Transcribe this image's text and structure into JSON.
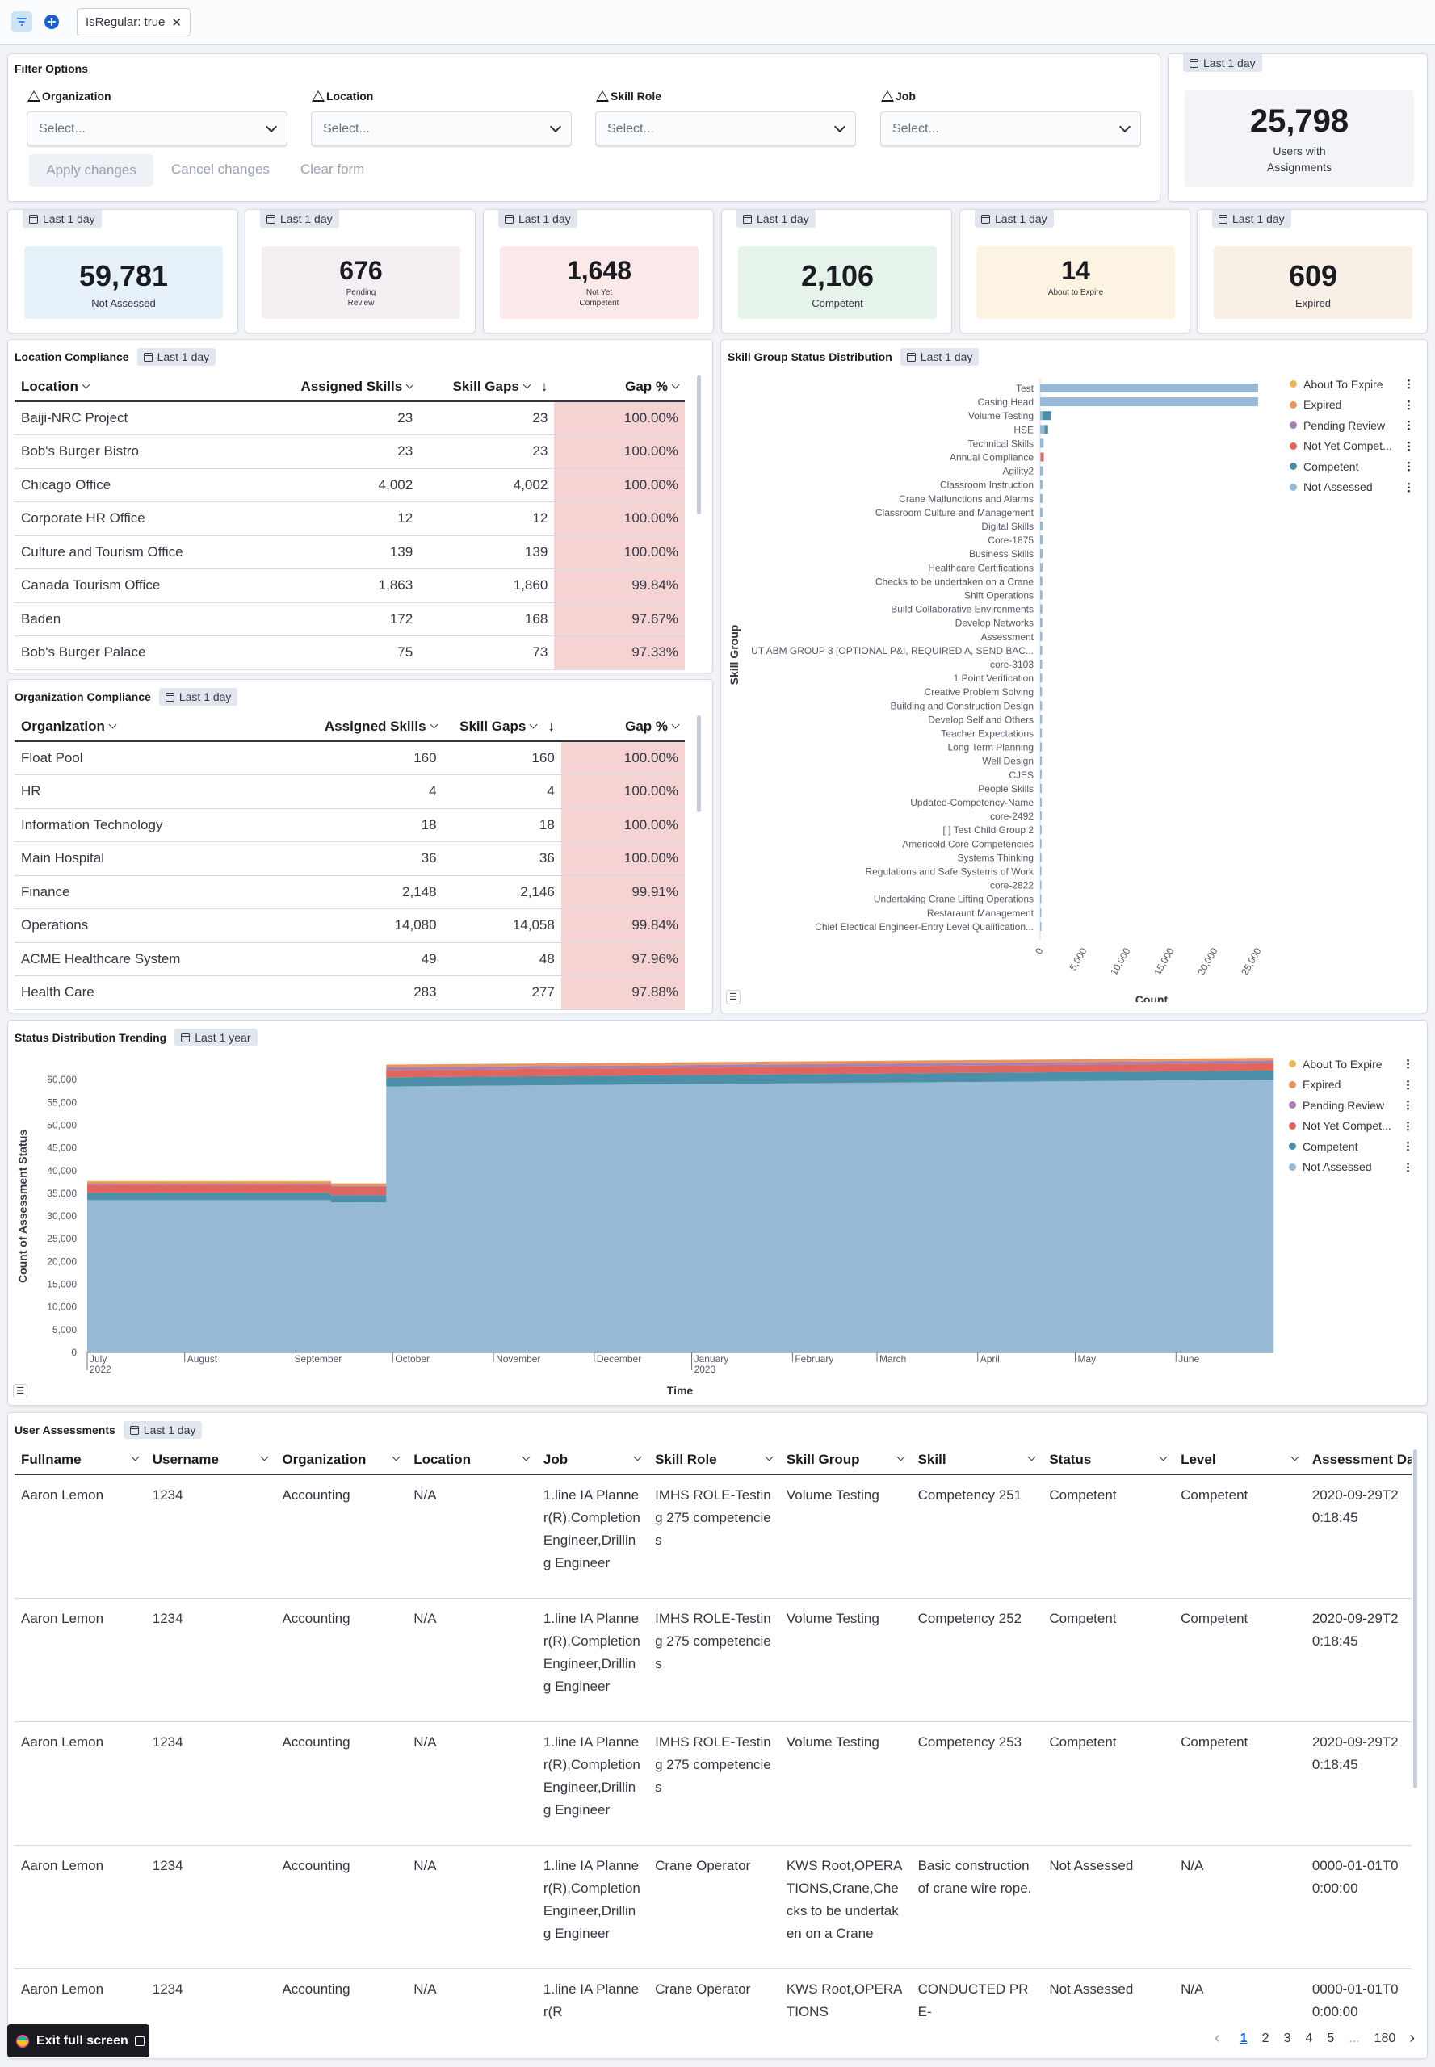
{
  "topbar": {
    "filter_pill": "IsRegular: true"
  },
  "filter_panel": {
    "title": "Filter Options",
    "fields": [
      {
        "label": "Organization",
        "placeholder": "Select..."
      },
      {
        "label": "Location",
        "placeholder": "Select..."
      },
      {
        "label": "Skill Role",
        "placeholder": "Select..."
      },
      {
        "label": "Job",
        "placeholder": "Select..."
      }
    ],
    "apply": "Apply changes",
    "cancel": "Cancel changes",
    "clear": "Clear form"
  },
  "time_badge_day": "Last 1 day",
  "time_badge_year": "Last 1 year",
  "kpis": {
    "users": {
      "value": "25,798",
      "label": "Users with Assignments"
    },
    "items": [
      {
        "value": "59,781",
        "label": "Not Assessed",
        "bg": "#e6f1fa"
      },
      {
        "value": "676",
        "label": "Pending Review",
        "bg": "#f5eef3"
      },
      {
        "value": "1,648",
        "label": "Not Yet Competent",
        "bg": "#fbe8e8"
      },
      {
        "value": "2,106",
        "label": "Competent",
        "bg": "#e6f3ea"
      },
      {
        "value": "14",
        "label": "About to Expire",
        "bg": "#fdf3e2"
      },
      {
        "value": "609",
        "label": "Expired",
        "bg": "#f8f0e6"
      }
    ]
  },
  "location_compliance": {
    "title": "Location Compliance",
    "headers": [
      "Location",
      "Assigned Skills",
      "Skill Gaps",
      "Gap %"
    ],
    "rows": [
      [
        "Baiji-NRC Project",
        "23",
        "23",
        "100.00%"
      ],
      [
        "Bob's Burger Bistro",
        "23",
        "23",
        "100.00%"
      ],
      [
        "Chicago Office",
        "4,002",
        "4,002",
        "100.00%"
      ],
      [
        "Corporate HR Office",
        "12",
        "12",
        "100.00%"
      ],
      [
        "Culture and Tourism Office",
        "139",
        "139",
        "100.00%"
      ],
      [
        "Canada Tourism Office",
        "1,863",
        "1,860",
        "99.84%"
      ],
      [
        "Baden",
        "172",
        "168",
        "97.67%"
      ],
      [
        "Bob's Burger Palace",
        "75",
        "73",
        "97.33%"
      ]
    ]
  },
  "organization_compliance": {
    "title": "Organization Compliance",
    "headers": [
      "Organization",
      "Assigned Skills",
      "Skill Gaps",
      "Gap %"
    ],
    "rows": [
      [
        "Float Pool",
        "160",
        "160",
        "100.00%"
      ],
      [
        "HR",
        "4",
        "4",
        "100.00%"
      ],
      [
        "Information Technology",
        "18",
        "18",
        "100.00%"
      ],
      [
        "Main Hospital",
        "36",
        "36",
        "100.00%"
      ],
      [
        "Finance",
        "2,148",
        "2,146",
        "99.91%"
      ],
      [
        "Operations",
        "14,080",
        "14,058",
        "99.84%"
      ],
      [
        "ACME Healthcare System",
        "49",
        "48",
        "97.96%"
      ],
      [
        "Health Care",
        "283",
        "277",
        "97.88%"
      ]
    ]
  },
  "chart_data": [
    {
      "type": "bar",
      "orientation": "horizontal",
      "stacked": true,
      "title": "Skill Group Status Distribution",
      "xlabel": "Count",
      "ylabel": "Skill Group",
      "xlim": [
        0,
        25000
      ],
      "xticks": [
        "0",
        "5,000",
        "10,000",
        "15,000",
        "20,000",
        "25,000"
      ],
      "categories": [
        "Test",
        "Casing Head",
        "Volume Testing",
        "HSE",
        "Technical Skills",
        "Annual Compliance",
        "Agility2",
        "Classroom Instruction",
        "Crane Malfunctions and Alarms",
        "Classroom Culture and Management",
        "Digital Skills",
        "Core-1875",
        "Business Skills",
        "Healthcare Certifications",
        "Checks to be undertaken on a Crane",
        "Shift Operations",
        "Build Collaborative Environments",
        "Develop Networks",
        "Assessment",
        "UT ABM GROUP 3 [OPTIONAL P&I, REQUIRED A, SEND BAC...",
        "core-3103",
        "1 Point Verification",
        "Creative Problem Solving",
        "Building and Construction Design",
        "Develop Self and Others",
        "Teacher Expectations",
        "Long Term Planning",
        "Well Design",
        "CJES",
        "People Skills",
        "Updated-Competency-Name",
        "core-2492",
        "[ ] Test Child Group 2",
        "Americold Core Competencies",
        "Systems Thinking",
        "Regulations and Safe Systems of Work",
        "core-2822",
        "Undertaking Crane Lifting Operations",
        "Restaraunt Management",
        "Chief Electical Engineer-Entry Level Qualification..."
      ],
      "series": [
        {
          "name": "About To Expire",
          "color": "#e7b85a",
          "values": [
            0,
            0,
            0,
            0,
            0,
            0,
            0,
            0,
            0,
            0,
            0,
            0,
            0,
            0,
            0,
            0,
            0,
            0,
            0,
            0,
            0,
            0,
            0,
            0,
            0,
            0,
            0,
            0,
            0,
            0,
            0,
            0,
            0,
            0,
            0,
            0,
            0,
            0,
            0,
            0
          ]
        },
        {
          "name": "Expired",
          "color": "#e8955e",
          "values": [
            0,
            0,
            0,
            30,
            0,
            60,
            0,
            0,
            0,
            0,
            0,
            0,
            0,
            0,
            0,
            0,
            0,
            0,
            0,
            0,
            0,
            0,
            0,
            0,
            0,
            0,
            0,
            0,
            0,
            0,
            0,
            0,
            0,
            0,
            0,
            0,
            0,
            0,
            0,
            0
          ]
        },
        {
          "name": "Pending Review",
          "color": "#a87eb5",
          "values": [
            0,
            0,
            0,
            0,
            0,
            0,
            0,
            0,
            0,
            0,
            0,
            0,
            0,
            0,
            0,
            0,
            0,
            0,
            0,
            0,
            0,
            0,
            0,
            0,
            0,
            0,
            0,
            0,
            0,
            0,
            0,
            0,
            0,
            0,
            0,
            0,
            0,
            0,
            0,
            0
          ]
        },
        {
          "name": "Not Yet Compet...",
          "color": "#e0655e",
          "values": [
            0,
            0,
            0,
            0,
            0,
            280,
            0,
            0,
            0,
            0,
            0,
            0,
            0,
            0,
            0,
            0,
            0,
            0,
            0,
            0,
            0,
            0,
            0,
            0,
            0,
            0,
            0,
            0,
            0,
            0,
            0,
            0,
            0,
            0,
            0,
            0,
            0,
            0,
            0,
            0
          ]
        },
        {
          "name": "Competent",
          "color": "#4c8fa8",
          "values": [
            0,
            0,
            1000,
            400,
            0,
            0,
            0,
            0,
            0,
            0,
            0,
            0,
            0,
            0,
            0,
            0,
            0,
            0,
            0,
            0,
            0,
            0,
            0,
            0,
            0,
            0,
            0,
            0,
            0,
            0,
            0,
            0,
            0,
            0,
            0,
            0,
            0,
            0,
            0,
            0
          ]
        },
        {
          "name": "Not Assessed",
          "color": "#96b9d6",
          "values": [
            25000,
            25000,
            300,
            500,
            400,
            100,
            350,
            300,
            300,
            300,
            300,
            300,
            280,
            280,
            260,
            260,
            260,
            260,
            240,
            240,
            230,
            230,
            220,
            220,
            220,
            200,
            200,
            200,
            180,
            180,
            180,
            170,
            170,
            160,
            160,
            150,
            150,
            140,
            140,
            140
          ]
        }
      ]
    },
    {
      "type": "bar",
      "stacked": true,
      "title": "Status Distribution Trending",
      "xlabel": "Time",
      "ylabel": "Count of Assessment Status",
      "ylim": [
        0,
        65000
      ],
      "yticks": [
        "0",
        "5,000",
        "10,000",
        "15,000",
        "20,000",
        "25,000",
        "30,000",
        "35,000",
        "40,000",
        "45,000",
        "50,000",
        "55,000",
        "60,000"
      ],
      "xticks": [
        "July 2022",
        "August",
        "September",
        "October",
        "November",
        "December",
        "January 2023",
        "February",
        "March",
        "April",
        "May",
        "June"
      ],
      "periods": [
        {
          "from": "July 2022",
          "to": "mid September",
          "not_assessed": 33500,
          "competent": 1600,
          "not_yet_competent": 1800,
          "pending_review": 200,
          "expired": 500,
          "about_to_expire": 100
        },
        {
          "from": "mid September",
          "to": "October",
          "not_assessed": 33000,
          "competent": 1600,
          "not_yet_competent": 1800,
          "pending_review": 200,
          "expired": 500,
          "about_to_expire": 100
        },
        {
          "from": "October",
          "to": "June",
          "not_assessed_start": 58500,
          "not_assessed_end": 60000,
          "competent": 2000,
          "not_yet_competent": 1600,
          "pending_review": 600,
          "expired": 600,
          "about_to_expire": 20
        }
      ],
      "series": [
        {
          "name": "About To Expire",
          "color": "#e7b85a"
        },
        {
          "name": "Expired",
          "color": "#e8955e"
        },
        {
          "name": "Pending Review",
          "color": "#a87eb5"
        },
        {
          "name": "Not Yet Compet...",
          "color": "#e0655e"
        },
        {
          "name": "Competent",
          "color": "#4c8fa8"
        },
        {
          "name": "Not Assessed",
          "color": "#96b9d6"
        }
      ]
    }
  ],
  "user_assessments": {
    "title": "User Assessments",
    "headers": [
      "Fullname",
      "Username",
      "Organization",
      "Location",
      "Job",
      "Skill Role",
      "Skill Group",
      "Skill",
      "Status",
      "Level",
      "Assessment Da"
    ],
    "rows": [
      [
        "Aaron Lemon",
        "1234",
        "Accounting",
        "N/A",
        "1.line IA Planner(R),Completion Engineer,Drilling Engineer",
        "IMHS ROLE-Testing 275 competencies",
        "Volume Testing",
        "Competency 251",
        "Competent",
        "Competent",
        "2020-09-29T20:18:45"
      ],
      [
        "Aaron Lemon",
        "1234",
        "Accounting",
        "N/A",
        "1.line IA Planner(R),Completion Engineer,Drilling Engineer",
        "IMHS ROLE-Testing 275 competencies",
        "Volume Testing",
        "Competency 252",
        "Competent",
        "Competent",
        "2020-09-29T20:18:45"
      ],
      [
        "Aaron Lemon",
        "1234",
        "Accounting",
        "N/A",
        "1.line IA Planner(R),Completion Engineer,Drilling Engineer",
        "IMHS ROLE-Testing 275 competencies",
        "Volume Testing",
        "Competency 253",
        "Competent",
        "Competent",
        "2020-09-29T20:18:45"
      ],
      [
        "Aaron Lemon",
        "1234",
        "Accounting",
        "N/A",
        "1.line IA Planner(R),Completion Engineer,Drilling Engineer",
        "Crane Operator",
        "KWS Root,OPERATIONS,Crane,Checks to be undertaken on a Crane",
        "Basic construction of crane wire rope.",
        "Not Assessed",
        "N/A",
        "0000-01-01T00:00:00"
      ],
      [
        "Aaron Lemon",
        "1234",
        "Accounting",
        "N/A",
        "1.line IA Planner(R",
        "Crane Operator",
        "KWS Root,OPERATIONS",
        "CONDUCTED PRE-",
        "Not Assessed",
        "N/A",
        "0000-01-01T00:00:00"
      ]
    ]
  },
  "pagination": {
    "pages": [
      "1",
      "2",
      "3",
      "4",
      "5"
    ],
    "ellipsis": "...",
    "last": "180"
  },
  "exit_button": "Exit full screen"
}
